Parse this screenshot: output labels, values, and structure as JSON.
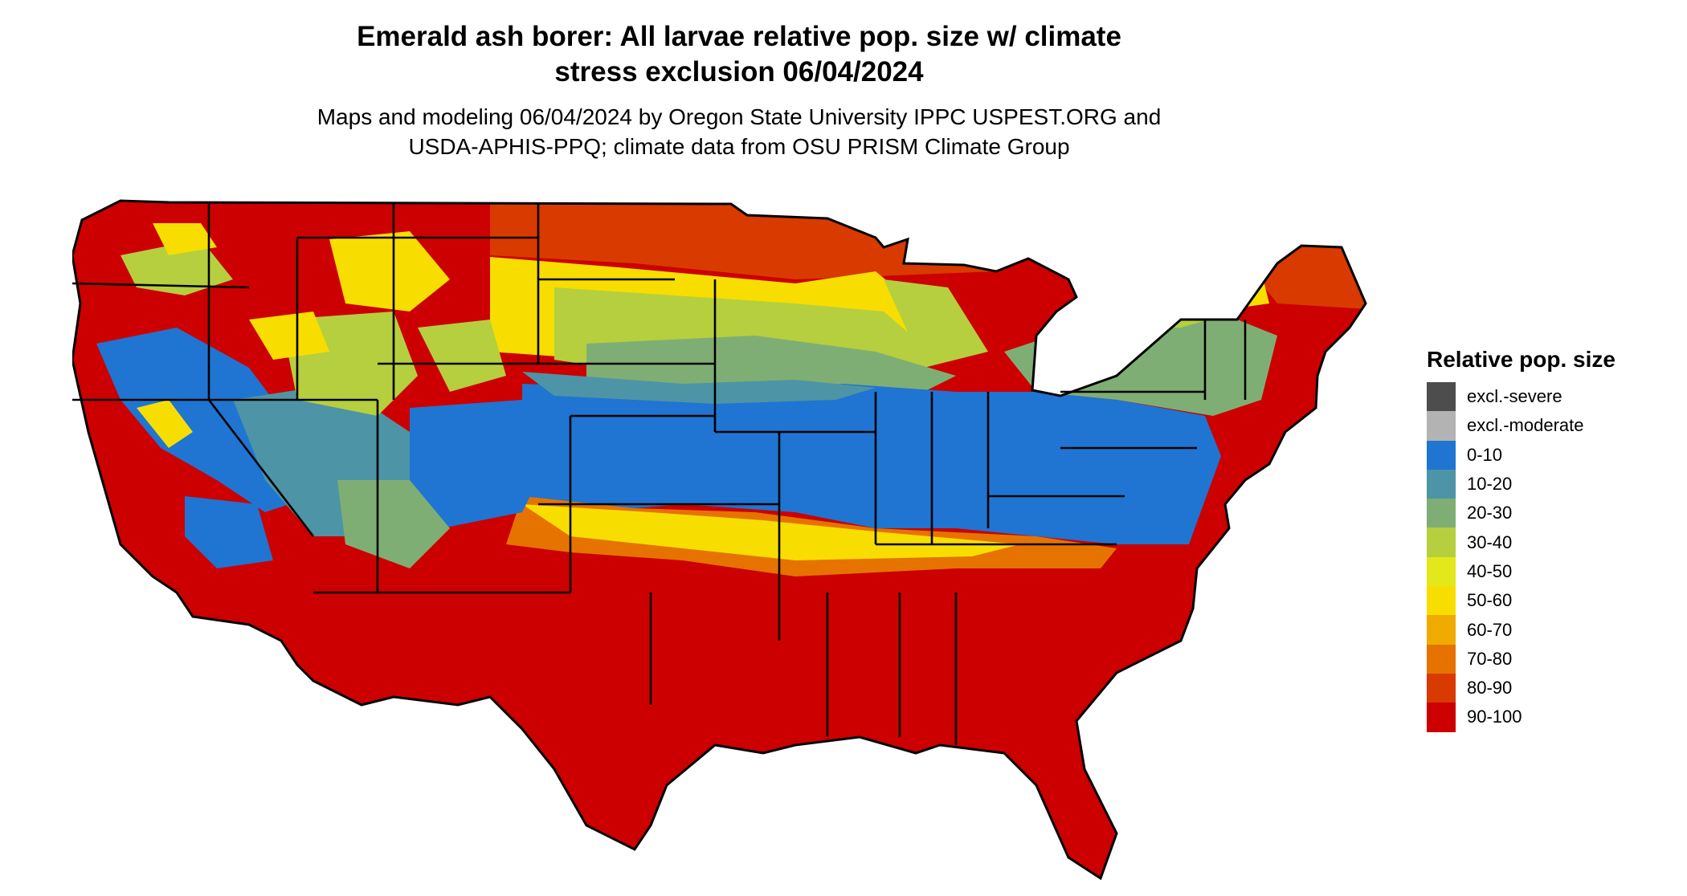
{
  "title_line1": "Emerald ash borer: All larvae relative pop. size w/ climate",
  "title_line2": "stress exclusion 06/04/2024",
  "subtitle_line1": "Maps and modeling 06/04/2024 by Oregon State University IPPC USPEST.ORG and",
  "subtitle_line2": "USDA-APHIS-PPQ; climate data from OSU PRISM Climate Group",
  "legend": {
    "title": "Relative pop. size",
    "items": [
      {
        "label": "excl.-severe",
        "color": "#4d4d4d"
      },
      {
        "label": "excl.-moderate",
        "color": "#b3b3b3"
      },
      {
        "label": "0-10",
        "color": "#1f75d1"
      },
      {
        "label": "10-20",
        "color": "#4d94a6"
      },
      {
        "label": "20-30",
        "color": "#7fae74"
      },
      {
        "label": "30-40",
        "color": "#b6cf3e"
      },
      {
        "label": "40-50",
        "color": "#e3e81a"
      },
      {
        "label": "50-60",
        "color": "#f7de00"
      },
      {
        "label": "60-70",
        "color": "#f0ab00"
      },
      {
        "label": "70-80",
        "color": "#e67300"
      },
      {
        "label": "80-90",
        "color": "#d93a00"
      },
      {
        "label": "90-100",
        "color": "#cc0000"
      }
    ]
  }
}
